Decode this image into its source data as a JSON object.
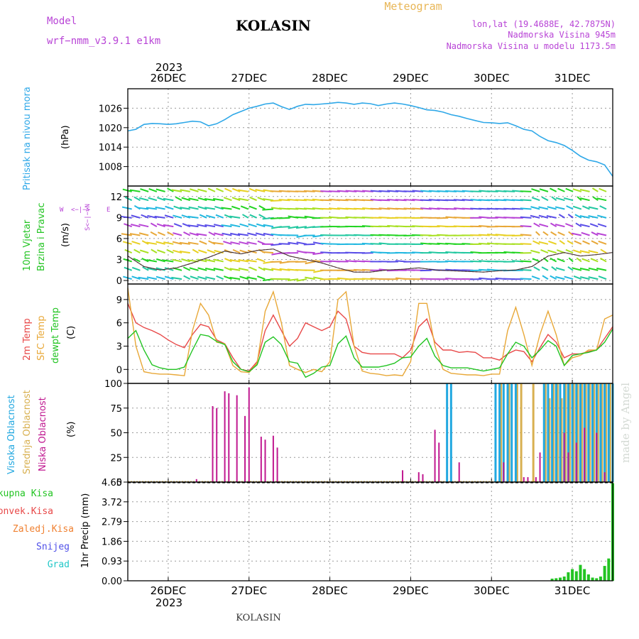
{
  "header": {
    "model_label": "Model",
    "model_name": "wrf−nmm_v3.9.1  e1km",
    "title": "KOLASIN",
    "meteogram_label": "Meteogram",
    "lonlat": "lon,lat (19.4688E, 42.7875N)",
    "elevation": "Nadmorska Visina 945m",
    "model_elevation": "Nadmorska Visina u modelu 1173.5m"
  },
  "footer": {
    "station": "KOLASIN",
    "watermark": "made by Angel"
  },
  "time_axis": {
    "year_label": "2023",
    "day_labels": [
      "26DEC",
      "27DEC",
      "28DEC",
      "29DEC",
      "30DEC",
      "31DEC"
    ],
    "x_start_day": -0.5,
    "x_end_day": 5.5
  },
  "colors": {
    "pressure": "#2fa8e8",
    "temp2m": "#e84848",
    "sfc_temp": "#e8a838",
    "dewpoint": "#22c422",
    "high_cloud": "#22a8e0",
    "mid_cloud": "#d8b050",
    "low_cloud": "#c01890",
    "total_precip": "#22c422",
    "conv_precip": "#e84848",
    "frz_precip": "#f08030",
    "snow": "#5050e8",
    "graupel": "#22c8c8"
  },
  "panel_labels": {
    "pressure": {
      "name": "Pritisak na nivou mora",
      "unit": "(hPa)"
    },
    "wind": {
      "name1": "10m Vjetar",
      "name2": "Brzina i Pravac",
      "unit": "(m/s)",
      "compass_ns": "S<−|−>N",
      "compass_w": "W",
      "compass_e": "E",
      "compass_mid": "<−|−>"
    },
    "temp": {
      "t2m": "2m Temp",
      "sfc": "SFC Temp",
      "dew": "dewpt Temp",
      "unit": "(C)"
    },
    "cloud": {
      "high": "Visoka Oblacnost",
      "mid": "Srednja Oblacnost",
      "low": "Niska Oblacnost",
      "unit": "(%)"
    },
    "precip": {
      "total": "Ukupna Kisa",
      "conv": "Konvek.Kisa",
      "frz": "Zaledj.Kisa",
      "snow": "Snijeg",
      "grad": "Grad",
      "unit": "1hr Precip (mm)"
    }
  },
  "chart_data": [
    {
      "type": "line",
      "title": "",
      "ylabel": "Pritisak na nivou mora (hPa)",
      "ylim": [
        1002,
        1032
      ],
      "yticks": [
        1008,
        1014,
        1020,
        1026
      ],
      "series": [
        {
          "name": "Pritisak na nivou mora",
          "x": [
            -0.5,
            -0.4,
            -0.3,
            -0.2,
            -0.1,
            0,
            0.1,
            0.2,
            0.3,
            0.4,
            0.5,
            0.6,
            0.7,
            0.8,
            0.9,
            1,
            1.1,
            1.2,
            1.3,
            1.4,
            1.5,
            1.6,
            1.7,
            1.8,
            1.9,
            2,
            2.1,
            2.2,
            2.3,
            2.4,
            2.5,
            2.6,
            2.7,
            2.8,
            2.9,
            3,
            3.1,
            3.2,
            3.3,
            3.4,
            3.5,
            3.6,
            3.7,
            3.8,
            3.9,
            4,
            4.1,
            4.2,
            4.3,
            4.4,
            4.5,
            4.6,
            4.7,
            4.8,
            4.9,
            5,
            5.1,
            5.2,
            5.3,
            5.4,
            5.5
          ],
          "values": [
            1019,
            1019.5,
            1021,
            1021.3,
            1021.2,
            1021,
            1021.2,
            1021.6,
            1022,
            1021.8,
            1020.6,
            1021.2,
            1022.5,
            1024,
            1025,
            1026,
            1026.6,
            1027.3,
            1027.6,
            1026.5,
            1025.6,
            1026.6,
            1027.2,
            1027.1,
            1027.3,
            1027.5,
            1027.8,
            1027.6,
            1027.2,
            1027.6,
            1027.4,
            1026.8,
            1027.3,
            1027.6,
            1027.3,
            1026.8,
            1026.2,
            1025.5,
            1025.3,
            1024.8,
            1024,
            1023.5,
            1022.8,
            1022.2,
            1021.6,
            1021.5,
            1021.3,
            1021.5,
            1020.6,
            1019.5,
            1019,
            1017.3,
            1016,
            1015.4,
            1014.5,
            1013,
            1011.2,
            1010,
            1009.5,
            1008.5,
            1005
          ]
        }
      ]
    },
    {
      "type": "line",
      "title": "",
      "ylabel": "10m Vjetar Brzina i Pravac (m/s)",
      "ylim": [
        -0.5,
        13.5
      ],
      "yticks": [
        0,
        3,
        6,
        9,
        12
      ],
      "note_values": "wind barbs shown as colored arrows",
      "series": [
        {
          "name": "10m Vjetar Brzina i Pravac",
          "x": [
            -0.5,
            -0.3,
            -0.1,
            0.1,
            0.3,
            0.5,
            0.7,
            0.9,
            1.1,
            1.3,
            1.5,
            1.7,
            1.9,
            2.1,
            2.3,
            2.5,
            2.7,
            2.9,
            3.1,
            3.3,
            3.5,
            3.7,
            3.9,
            4.1,
            4.3,
            4.5,
            4.7,
            4.9,
            5.1,
            5.3,
            5.5
          ],
          "values": [
            3.5,
            2,
            1.5,
            1.8,
            2.5,
            3.3,
            4.2,
            3.8,
            4.3,
            4.5,
            3.5,
            3,
            2.5,
            1.8,
            1.2,
            1.2,
            1.5,
            1.6,
            1.8,
            1.5,
            1.4,
            1.3,
            1.2,
            1.4,
            1.5,
            2,
            3.5,
            4,
            3.5,
            3.7,
            4
          ]
        }
      ]
    },
    {
      "type": "line",
      "title": "",
      "ylabel": "(C)",
      "ylim": [
        -1.8,
        11
      ],
      "yticks": [
        0,
        3,
        6,
        9
      ],
      "series": [
        {
          "name": "2m Temp",
          "x": [
            -0.5,
            -0.4,
            -0.3,
            -0.2,
            -0.1,
            0,
            0.1,
            0.2,
            0.3,
            0.4,
            0.5,
            0.6,
            0.7,
            0.8,
            0.9,
            1,
            1.1,
            1.2,
            1.3,
            1.4,
            1.5,
            1.6,
            1.7,
            1.8,
            1.9,
            2,
            2.1,
            2.2,
            2.3,
            2.4,
            2.5,
            2.6,
            2.7,
            2.8,
            2.9,
            3,
            3.1,
            3.2,
            3.3,
            3.4,
            3.5,
            3.6,
            3.7,
            3.8,
            3.9,
            4,
            4.1,
            4.2,
            4.3,
            4.4,
            4.5,
            4.6,
            4.7,
            4.8,
            4.9,
            5,
            5.1,
            5.2,
            5.3,
            5.4,
            5.5
          ],
          "values": [
            8.5,
            6,
            5.4,
            5,
            4.5,
            3.8,
            3.2,
            2.8,
            4.5,
            5.8,
            5.5,
            3.8,
            3.3,
            1.5,
            0,
            -0.2,
            1,
            5,
            7,
            5,
            3,
            4,
            6,
            5.5,
            5,
            5.5,
            7.5,
            6.5,
            3,
            2.2,
            2,
            2,
            2,
            2,
            1.5,
            2.5,
            5.5,
            6.5,
            3.5,
            2.5,
            2.5,
            2.2,
            2.3,
            2.2,
            1.5,
            1.5,
            1.2,
            2,
            2.5,
            2.3,
            1,
            2.8,
            4.5,
            3.5,
            1.5,
            2,
            2,
            2.3,
            2.5,
            4,
            5.5
          ]
        },
        {
          "name": "SFC Temp",
          "x": [
            -0.5,
            -0.4,
            -0.3,
            -0.2,
            -0.1,
            0,
            0.1,
            0.2,
            0.3,
            0.4,
            0.5,
            0.6,
            0.7,
            0.8,
            0.9,
            1,
            1.1,
            1.2,
            1.3,
            1.4,
            1.5,
            1.6,
            1.7,
            1.8,
            1.9,
            2,
            2.1,
            2.2,
            2.3,
            2.4,
            2.5,
            2.6,
            2.7,
            2.8,
            2.9,
            3,
            3.1,
            3.2,
            3.3,
            3.4,
            3.5,
            3.6,
            3.7,
            3.8,
            3.9,
            4,
            4.1,
            4.2,
            4.3,
            4.4,
            4.5,
            4.6,
            4.7,
            4.8,
            4.9,
            5,
            5.1,
            5.2,
            5.3,
            5.4,
            5.5
          ],
          "values": [
            10.5,
            3,
            -0.3,
            -0.5,
            -0.6,
            -0.6,
            -0.7,
            -0.8,
            5,
            8.5,
            7,
            3.5,
            3.3,
            0.5,
            -0.3,
            -0.4,
            0.8,
            7.5,
            10,
            6,
            0.5,
            0,
            -0.4,
            0,
            -0.3,
            1,
            9,
            10,
            3,
            -0.2,
            -0.5,
            -0.6,
            -0.8,
            -0.7,
            -0.8,
            1,
            8.5,
            8.5,
            3,
            0,
            -0.5,
            -0.6,
            -0.7,
            -0.7,
            -0.8,
            -0.6,
            -0.6,
            5,
            8,
            4.5,
            0.5,
            4.5,
            7.5,
            4.5,
            0.5,
            1.5,
            1.8,
            2.5,
            2.5,
            6.5,
            7
          ]
        },
        {
          "name": "dewpt Temp",
          "x": [
            -0.5,
            -0.4,
            -0.3,
            -0.2,
            -0.1,
            0,
            0.1,
            0.2,
            0.3,
            0.4,
            0.5,
            0.6,
            0.7,
            0.8,
            0.9,
            1,
            1.1,
            1.2,
            1.3,
            1.4,
            1.5,
            1.6,
            1.7,
            1.8,
            1.9,
            2,
            2.1,
            2.2,
            2.3,
            2.4,
            2.5,
            2.6,
            2.7,
            2.8,
            2.9,
            3,
            3.1,
            3.2,
            3.3,
            3.4,
            3.5,
            3.6,
            3.7,
            3.8,
            3.9,
            4,
            4.1,
            4.2,
            4.3,
            4.4,
            4.5,
            4.6,
            4.7,
            4.8,
            4.9,
            5,
            5.1,
            5.2,
            5.3,
            5.4,
            5.5
          ],
          "values": [
            4,
            5,
            2.5,
            0.6,
            0.2,
            0,
            0,
            0.3,
            2.5,
            4.5,
            4.3,
            3.6,
            3.2,
            1,
            0,
            -0.3,
            0.6,
            3.5,
            4.2,
            3.2,
            1,
            0.8,
            -1,
            -0.5,
            0.3,
            0.5,
            3.3,
            4.3,
            1.5,
            0.3,
            0.3,
            0.3,
            0.5,
            0.8,
            1.5,
            1.6,
            3,
            4,
            1.7,
            0.5,
            0.2,
            0.2,
            0.2,
            0,
            -0.2,
            0,
            0.2,
            2,
            3.5,
            3,
            1.5,
            2.5,
            3.7,
            3,
            0.5,
            1.8,
            2,
            2.2,
            2.5,
            3.5,
            5.2
          ]
        }
      ]
    },
    {
      "type": "bar",
      "title": "",
      "ylabel": "(%)",
      "ylim": [
        0,
        100
      ],
      "yticks": [
        0,
        25,
        50,
        75,
        100
      ],
      "series": [
        {
          "name": "Niska Oblacnost",
          "x": [
            0.35,
            0.55,
            0.6,
            0.7,
            0.75,
            0.85,
            0.95,
            1.0,
            1.15,
            1.2,
            1.3,
            1.35,
            2.9,
            3.1,
            3.15,
            3.3,
            3.35,
            3.6,
            4.15,
            4.4,
            4.45,
            4.55,
            4.6,
            4.9,
            4.95,
            5.05,
            5.15,
            5.3,
            5.4
          ],
          "values": [
            3,
            77,
            75,
            92,
            90,
            88,
            67,
            96,
            46,
            43,
            47,
            35,
            12,
            10,
            8,
            53,
            40,
            20,
            20,
            5,
            5,
            5,
            30,
            50,
            30,
            40,
            55,
            50,
            10
          ]
        },
        {
          "name": "Srednja Oblacnost",
          "x": [
            4.1,
            4.2,
            4.3,
            4.35,
            4.5,
            4.65,
            4.7,
            4.75,
            4.8,
            4.85,
            4.9,
            4.95,
            5.0,
            5.05,
            5.1,
            5.15,
            5.2,
            5.25,
            5.3,
            5.35,
            5.4,
            5.45
          ],
          "values": [
            100,
            100,
            100,
            100,
            100,
            100,
            85,
            100,
            100,
            85,
            100,
            100,
            100,
            100,
            100,
            100,
            100,
            100,
            100,
            100,
            100,
            100
          ]
        },
        {
          "name": "Visoka Oblacnost",
          "x": [
            3.45,
            3.5,
            4.05,
            4.1,
            4.15,
            4.2,
            4.25,
            4.3,
            4.65,
            4.7,
            4.75,
            4.8,
            4.85,
            4.9,
            4.95,
            5.0,
            5.05,
            5.1,
            5.15,
            5.2,
            5.25,
            5.3,
            5.35,
            5.4,
            5.45,
            5.5
          ],
          "values": [
            100,
            100,
            100,
            100,
            100,
            100,
            100,
            100,
            100,
            100,
            100,
            100,
            100,
            100,
            100,
            100,
            100,
            100,
            100,
            100,
            100,
            100,
            100,
            100,
            100,
            100
          ]
        }
      ]
    },
    {
      "type": "bar",
      "title": "",
      "ylabel": "1hr Precip (mm)",
      "ylim": [
        0,
        4.65
      ],
      "yticks": [
        0,
        0.93,
        1.86,
        2.79,
        3.72,
        4.65
      ],
      "series": [
        {
          "name": "Ukupna Kisa",
          "x": [
            4.75,
            4.8,
            4.85,
            4.9,
            4.95,
            5.0,
            5.05,
            5.1,
            5.15,
            5.2,
            5.25,
            5.3,
            5.35,
            5.4,
            5.45,
            5.5
          ],
          "values": [
            0.1,
            0.12,
            0.15,
            0.2,
            0.4,
            0.55,
            0.45,
            0.75,
            0.55,
            0.3,
            0.15,
            0.12,
            0.2,
            0.7,
            1.05,
            4.6
          ]
        }
      ]
    }
  ]
}
